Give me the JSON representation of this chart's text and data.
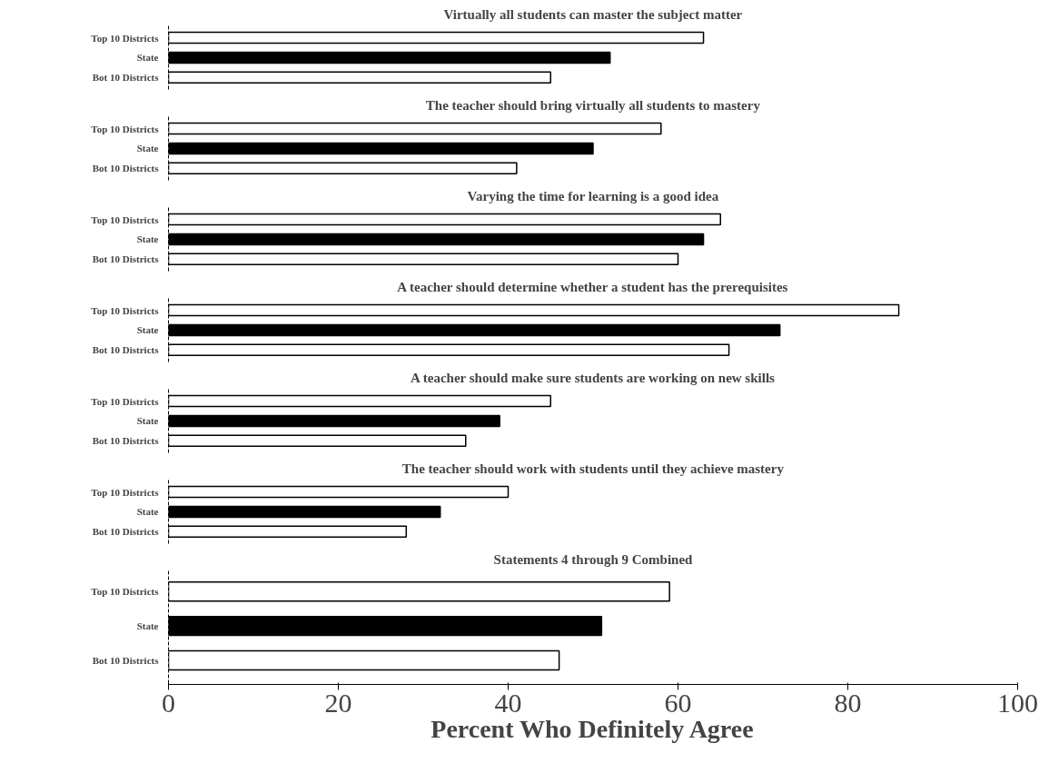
{
  "chart_data": [
    {
      "type": "bar",
      "orientation": "horizontal",
      "title": "Virtually all students can master the subject matter",
      "categories": [
        "Top 10 Districts",
        "State",
        "Bot 10 Districts"
      ],
      "values": [
        63,
        52,
        45
      ],
      "colors": [
        "#ffffff",
        "#000000",
        "#ffffff"
      ],
      "xlim": [
        0,
        100
      ],
      "xticks": [
        0,
        20,
        40,
        60,
        80,
        100
      ],
      "tick_labels": "y",
      "grid": false
    },
    {
      "type": "bar",
      "orientation": "horizontal",
      "title": "The teacher should bring virtually all students to mastery",
      "categories": [
        "Top 10 Districts",
        "State",
        "Bot 10 Districts"
      ],
      "values": [
        58,
        50,
        41
      ],
      "colors": [
        "#ffffff",
        "#000000",
        "#ffffff"
      ],
      "xlim": [
        0,
        100
      ],
      "xticks": [
        0,
        20,
        40,
        60,
        80,
        100
      ],
      "tick_labels": "y",
      "grid": false
    },
    {
      "type": "bar",
      "orientation": "horizontal",
      "title": "Varying the time for learning is a good idea",
      "categories": [
        "Top 10 Districts",
        "State",
        "Bot 10 Districts"
      ],
      "values": [
        65,
        63,
        60
      ],
      "colors": [
        "#ffffff",
        "#000000",
        "#ffffff"
      ],
      "xlim": [
        0,
        100
      ],
      "xticks": [
        0,
        20,
        40,
        60,
        80,
        100
      ],
      "tick_labels": "y",
      "grid": false
    },
    {
      "type": "bar",
      "orientation": "horizontal",
      "title": "A teacher should determine whether a student has the prerequisites",
      "categories": [
        "Top 10 Districts",
        "State",
        "Bot 10 Districts"
      ],
      "values": [
        86,
        72,
        66
      ],
      "colors": [
        "#ffffff",
        "#000000",
        "#ffffff"
      ],
      "xlim": [
        0,
        100
      ],
      "xticks": [
        0,
        20,
        40,
        60,
        80,
        100
      ],
      "tick_labels": "y",
      "grid": false
    },
    {
      "type": "bar",
      "orientation": "horizontal",
      "title": "A teacher should make sure students are working on new skills",
      "categories": [
        "Top 10 Districts",
        "State",
        "Bot 10 Districts"
      ],
      "values": [
        45,
        39,
        35
      ],
      "colors": [
        "#ffffff",
        "#000000",
        "#ffffff"
      ],
      "xlim": [
        0,
        100
      ],
      "xticks": [
        0,
        20,
        40,
        60,
        80,
        100
      ],
      "tick_labels": "y",
      "grid": false
    },
    {
      "type": "bar",
      "orientation": "horizontal",
      "title": "The teacher should work with students until they achieve mastery",
      "categories": [
        "Top 10 Districts",
        "State",
        "Bot 10 Districts"
      ],
      "values": [
        40,
        32,
        28
      ],
      "colors": [
        "#ffffff",
        "#000000",
        "#ffffff"
      ],
      "xlim": [
        0,
        100
      ],
      "xticks": [
        0,
        20,
        40,
        60,
        80,
        100
      ],
      "tick_labels": "y",
      "grid": false
    },
    {
      "type": "bar",
      "orientation": "horizontal",
      "title": "Statements 4 through 9 Combined",
      "xlabel": "Percent Who Definitely Agree",
      "categories": [
        "Top 10 Districts",
        "State",
        "Bot 10 Districts"
      ],
      "values": [
        59,
        51,
        46
      ],
      "colors": [
        "#ffffff",
        "#000000",
        "#ffffff"
      ],
      "xlim": [
        0,
        100
      ],
      "xticks": [
        0,
        20,
        40,
        60,
        80,
        100
      ],
      "grid": false
    }
  ]
}
